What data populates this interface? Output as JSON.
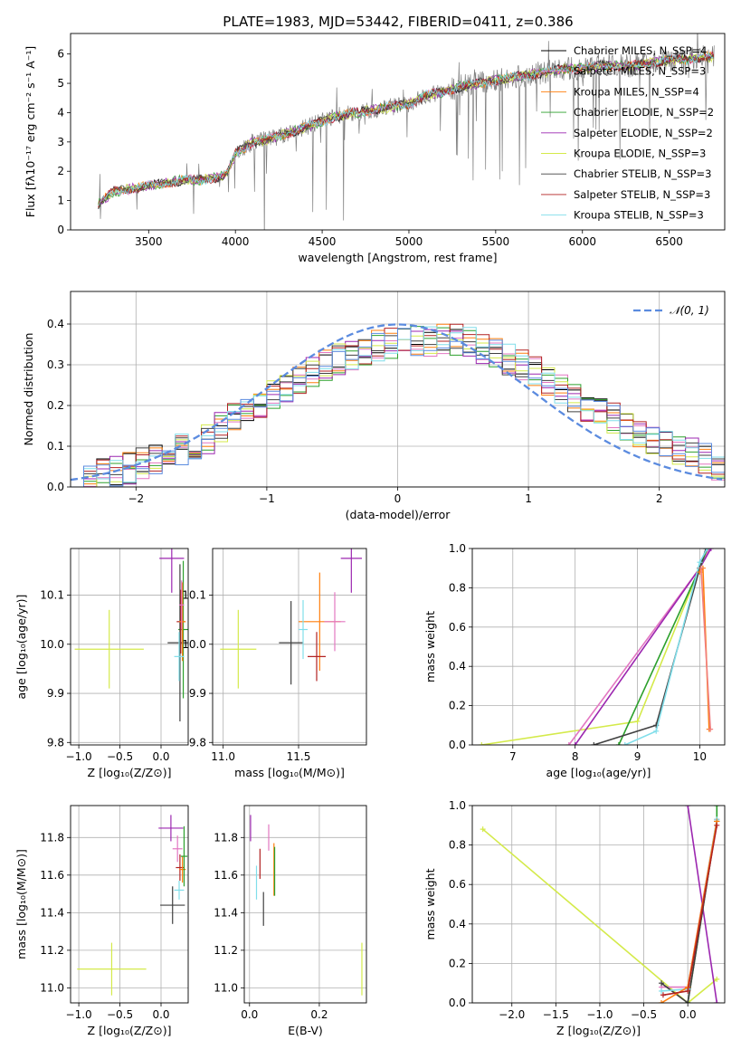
{
  "figure": {
    "title": "PLATE=1983, MJD=53442, FIBERID=0411, z=0.386"
  },
  "chart_data": [
    {
      "id": "spectrum",
      "type": "line",
      "xlabel": "wavelength [Angstrom, rest frame]",
      "ylabel": "Flux [fλ10⁻¹⁷ erg cm⁻² s⁻¹ A⁻¹]",
      "xlim": [
        3050,
        6820
      ],
      "ylim": [
        0,
        6.7
      ],
      "xticks": [
        3500,
        4000,
        4500,
        5000,
        5500,
        6000,
        6500
      ],
      "yticks": [
        0,
        1,
        2,
        3,
        4,
        5,
        6
      ],
      "grid": false,
      "legend_position": "top-right",
      "data_range": [
        3210,
        6760
      ],
      "legend": [
        {
          "name": "Chabrier MILES, N_SSP=4",
          "color": "#000000"
        },
        {
          "name": "Salpeter MILES, N_SSP=3",
          "color": "#e377c2"
        },
        {
          "name": "Kroupa MILES, N_SSP=4",
          "color": "#ff7f0e"
        },
        {
          "name": "Chabrier ELODIE, N_SSP=2",
          "color": "#2ca02c"
        },
        {
          "name": "Salpeter ELODIE, N_SSP=2",
          "color": "#9c27b0"
        },
        {
          "name": "Kroupa ELODIE, N_SSP=3",
          "color": "#d4ea4a"
        },
        {
          "name": "Chabrier STELIB, N_SSP=3",
          "color": "#404040"
        },
        {
          "name": "Salpeter STELIB, N_SSP=3",
          "color": "#b22222"
        },
        {
          "name": "Kroupa STELIB, N_SSP=3",
          "color": "#80deea"
        }
      ],
      "continuum": [
        [
          3210,
          0.9
        ],
        [
          3300,
          1.3
        ],
        [
          3400,
          1.4
        ],
        [
          3500,
          1.5
        ],
        [
          3600,
          1.6
        ],
        [
          3700,
          1.7
        ],
        [
          3800,
          1.7
        ],
        [
          3900,
          1.8
        ],
        [
          3950,
          1.9
        ],
        [
          4000,
          2.6
        ],
        [
          4100,
          3.0
        ],
        [
          4200,
          3.1
        ],
        [
          4300,
          3.3
        ],
        [
          4400,
          3.5
        ],
        [
          4500,
          3.7
        ],
        [
          4600,
          3.9
        ],
        [
          4700,
          4.0
        ],
        [
          4800,
          4.1
        ],
        [
          4900,
          4.2
        ],
        [
          5000,
          4.3
        ],
        [
          5100,
          4.6
        ],
        [
          5200,
          4.7
        ],
        [
          5300,
          4.9
        ],
        [
          5400,
          5.0
        ],
        [
          5500,
          5.1
        ],
        [
          5600,
          5.2
        ],
        [
          5700,
          5.3
        ],
        [
          5800,
          5.4
        ],
        [
          5900,
          5.5
        ],
        [
          6000,
          5.5
        ],
        [
          6100,
          5.6
        ],
        [
          6200,
          5.6
        ],
        [
          6300,
          5.6
        ],
        [
          6400,
          5.7
        ],
        [
          6500,
          5.8
        ],
        [
          6600,
          5.8
        ],
        [
          6700,
          5.9
        ],
        [
          6760,
          5.9
        ]
      ]
    },
    {
      "id": "residual-distribution",
      "type": "line",
      "xlabel": "(data-model)/error",
      "ylabel": "Normed distribution",
      "xlim": [
        -2.5,
        2.5
      ],
      "ylim": [
        0,
        0.48
      ],
      "xticks": [
        -2,
        -1,
        0,
        1,
        2
      ],
      "yticks": [
        0.0,
        0.1,
        0.2,
        0.3,
        0.4
      ],
      "grid": true,
      "legend_position": "top-right",
      "reference_curve": {
        "name": "𝒩(0, 1)",
        "mean": 0,
        "sigma": 1,
        "color": "#5b8bdf"
      },
      "bin_width": 0.1,
      "envelope": [
        [
          -2.5,
          0.02
        ],
        [
          -2.0,
          0.05
        ],
        [
          -1.5,
          0.11
        ],
        [
          -1.0,
          0.22
        ],
        [
          -0.5,
          0.31
        ],
        [
          0.0,
          0.36
        ],
        [
          0.5,
          0.36
        ],
        [
          1.0,
          0.29
        ],
        [
          1.5,
          0.19
        ],
        [
          2.0,
          0.11
        ],
        [
          2.5,
          0.05
        ]
      ],
      "series_colors": [
        "#000000",
        "#e377c2",
        "#ff7f0e",
        "#2ca02c",
        "#9c27b0",
        "#d4ea4a",
        "#404040",
        "#b22222",
        "#80deea",
        "#5b8bdf"
      ]
    },
    {
      "id": "age-vs-Z",
      "type": "scatter",
      "xlabel": "Z [log₁₀(Z/Z⊙)]",
      "ylabel": "age [log₁₀(age/yr)]",
      "xlim": [
        -1.1,
        0.33
      ],
      "ylim": [
        9.795,
        10.195
      ],
      "xticks": [
        -1.0,
        -0.5,
        0.0
      ],
      "yticks": [
        9.8,
        9.9,
        10.0,
        10.1
      ],
      "grid": true,
      "points": [
        {
          "x": -0.63,
          "y": 9.99,
          "xerr": 0.42,
          "yerr": 0.08,
          "color": "#d4ea4a"
        },
        {
          "x": 0.13,
          "y": 10.175,
          "xerr": 0.15,
          "yerr": 0.07,
          "color": "#9c27b0"
        },
        {
          "x": 0.27,
          "y": 10.03,
          "xerr": 0.06,
          "yerr": 0.14,
          "color": "#2ca02c"
        },
        {
          "x": 0.23,
          "y": 10.003,
          "xerr": 0.15,
          "yerr": 0.16,
          "color": "#404040"
        },
        {
          "x": 0.24,
          "y": 10.046,
          "xerr": 0.05,
          "yerr": 0.065,
          "color": "#b22222"
        },
        {
          "x": 0.26,
          "y": 10.046,
          "xerr": 0.04,
          "yerr": 0.08,
          "color": "#ff7f0e"
        },
        {
          "x": 0.22,
          "y": 9.975,
          "xerr": 0.06,
          "yerr": 0.05,
          "color": "#80deea"
        },
        {
          "x": 0.25,
          "y": 10.08,
          "xerr": 0.03,
          "yerr": 0.05,
          "color": "#e377c2"
        }
      ]
    },
    {
      "id": "age-vs-mass",
      "type": "scatter",
      "xlabel": "mass [log₁₀(M/M⊙)]",
      "ylabel": "",
      "xlim": [
        10.93,
        11.95
      ],
      "ylim": [
        9.795,
        10.195
      ],
      "xticks": [
        11.0,
        11.5
      ],
      "yticks": [
        9.8,
        9.9,
        10.0,
        10.1
      ],
      "grid": true,
      "points": [
        {
          "x": 11.1,
          "y": 9.99,
          "xerr": 0.12,
          "yerr": 0.08,
          "color": "#d4ea4a"
        },
        {
          "x": 11.45,
          "y": 10.003,
          "xerr": 0.08,
          "yerr": 0.085,
          "color": "#404040"
        },
        {
          "x": 11.85,
          "y": 10.175,
          "xerr": 0.07,
          "yerr": 0.07,
          "color": "#9c27b0"
        },
        {
          "x": 11.64,
          "y": 10.046,
          "xerr": 0.14,
          "yerr": 0.1,
          "color": "#ff7f0e"
        },
        {
          "x": 11.74,
          "y": 10.046,
          "xerr": 0.07,
          "yerr": 0.06,
          "color": "#e377c2"
        },
        {
          "x": 11.62,
          "y": 9.975,
          "xerr": 0.06,
          "yerr": 0.05,
          "color": "#b22222"
        },
        {
          "x": 11.53,
          "y": 10.03,
          "xerr": 0.03,
          "yerr": 0.06,
          "color": "#80deea"
        }
      ]
    },
    {
      "id": "cumulative-mass-weight-age",
      "type": "line",
      "xlabel": "age [log₁₀(age/yr)]",
      "ylabel": "mass weight",
      "xlim": [
        6.35,
        10.4
      ],
      "ylim": [
        0,
        1
      ],
      "xticks": [
        7,
        8,
        9,
        10
      ],
      "yticks": [
        0.0,
        0.2,
        0.4,
        0.6,
        0.8,
        1.0
      ],
      "grid": true,
      "series": [
        {
          "color": "#d4ea4a",
          "points": [
            [
              6.5,
              0.0
            ],
            [
              9.0,
              0.12
            ],
            [
              10.0,
              0.9
            ],
            [
              10.13,
              1.0
            ]
          ]
        },
        {
          "color": "#e377c2",
          "points": [
            [
              7.9,
              0.0
            ],
            [
              10.0,
              0.9
            ],
            [
              10.15,
              1.0
            ]
          ]
        },
        {
          "color": "#9c27b0",
          "points": [
            [
              8.0,
              0.0
            ],
            [
              10.0,
              0.9
            ],
            [
              10.18,
              1.0
            ]
          ]
        },
        {
          "color": "#2ca02c",
          "points": [
            [
              8.7,
              0.0
            ],
            [
              10.0,
              0.9
            ],
            [
              10.12,
              1.0
            ]
          ]
        },
        {
          "color": "#404040",
          "points": [
            [
              8.3,
              0.0
            ],
            [
              9.3,
              0.1
            ],
            [
              10.0,
              0.9
            ],
            [
              10.1,
              1.0
            ]
          ]
        },
        {
          "color": "#80deea",
          "points": [
            [
              8.8,
              0.0
            ],
            [
              9.3,
              0.07
            ],
            [
              10.0,
              0.93
            ],
            [
              10.12,
              1.0
            ]
          ]
        },
        {
          "color": "#ff7f0e",
          "points": [
            [
              10.0,
              0.88
            ],
            [
              10.05,
              0.9
            ],
            [
              10.15,
              0.08
            ]
          ]
        },
        {
          "color": "#f08080",
          "points": [
            [
              10.02,
              0.9
            ],
            [
              10.17,
              0.08
            ]
          ]
        }
      ]
    },
    {
      "id": "mass-vs-Z",
      "type": "scatter",
      "xlabel": "Z [log₁₀(Z/Z⊙)]",
      "ylabel": "mass [log₁₀(M/M⊙)]",
      "xlim": [
        -1.1,
        0.33
      ],
      "ylim": [
        10.92,
        11.97
      ],
      "xticks": [
        -1.0,
        -0.5,
        0.0
      ],
      "yticks": [
        11.0,
        11.2,
        11.4,
        11.6,
        11.8
      ],
      "grid": true,
      "points": [
        {
          "x": -0.6,
          "y": 11.1,
          "xerr": 0.42,
          "yerr": 0.14,
          "color": "#d4ea4a"
        },
        {
          "x": 0.12,
          "y": 11.85,
          "xerr": 0.15,
          "yerr": 0.07,
          "color": "#9c27b0"
        },
        {
          "x": 0.14,
          "y": 11.44,
          "xerr": 0.15,
          "yerr": 0.1,
          "color": "#404040"
        },
        {
          "x": 0.23,
          "y": 11.64,
          "xerr": 0.05,
          "yerr": 0.07,
          "color": "#b22222"
        },
        {
          "x": 0.26,
          "y": 11.63,
          "xerr": 0.04,
          "yerr": 0.07,
          "color": "#ff7f0e"
        },
        {
          "x": 0.22,
          "y": 11.52,
          "xerr": 0.06,
          "yerr": 0.05,
          "color": "#80deea"
        },
        {
          "x": 0.2,
          "y": 11.74,
          "xerr": 0.06,
          "yerr": 0.07,
          "color": "#e377c2"
        },
        {
          "x": 0.28,
          "y": 11.7,
          "xerr": 0.04,
          "yerr": 0.16,
          "color": "#2ca02c"
        }
      ]
    },
    {
      "id": "mass-vs-EBV",
      "type": "scatter",
      "xlabel": "E(B-V)",
      "ylabel": "",
      "xlim": [
        -0.015,
        0.335
      ],
      "ylim": [
        10.92,
        11.97
      ],
      "xticks": [
        0.0,
        0.2
      ],
      "yticks": [
        11.0,
        11.2,
        11.4,
        11.6,
        11.8
      ],
      "grid": true,
      "points": [
        {
          "x": 0.003,
          "y": 11.85,
          "yerr": 0.07,
          "color": "#9c27b0"
        },
        {
          "x": 0.03,
          "y": 11.66,
          "yerr": 0.08,
          "color": "#b22222"
        },
        {
          "x": 0.02,
          "y": 11.56,
          "yerr": 0.09,
          "color": "#80deea"
        },
        {
          "x": 0.04,
          "y": 11.42,
          "yerr": 0.09,
          "color": "#404040"
        },
        {
          "x": 0.055,
          "y": 11.8,
          "yerr": 0.07,
          "color": "#e377c2"
        },
        {
          "x": 0.07,
          "y": 11.63,
          "yerr": 0.14,
          "color": "#ff7f0e"
        },
        {
          "x": 0.072,
          "y": 11.62,
          "yerr": 0.13,
          "color": "#2ca02c"
        },
        {
          "x": 0.322,
          "y": 11.1,
          "yerr": 0.14,
          "color": "#d4ea4a"
        }
      ]
    },
    {
      "id": "cumulative-mass-weight-Z",
      "type": "line",
      "xlabel": "Z [log₁₀(Z/Z⊙)]",
      "ylabel": "mass weight",
      "xlim": [
        -2.45,
        0.42
      ],
      "ylim": [
        0,
        1
      ],
      "xticks": [
        -2.0,
        -1.5,
        -1.0,
        -0.5,
        0.0
      ],
      "yticks": [
        0.0,
        0.2,
        0.4,
        0.6,
        0.8,
        1.0
      ],
      "grid": true,
      "series": [
        {
          "color": "#d4ea4a",
          "points": [
            [
              -2.33,
              0.88
            ],
            [
              0.0,
              0.0
            ],
            [
              0.33,
              0.12
            ]
          ]
        },
        {
          "color": "#e377c2",
          "points": [
            [
              -0.3,
              0.08
            ],
            [
              0.0,
              0.08
            ],
            [
              0.33,
              0.93
            ]
          ]
        },
        {
          "color": "#9c27b0",
          "points": [
            [
              0.0,
              1.0
            ],
            [
              0.33,
              0.0
            ]
          ]
        },
        {
          "color": "#2ca02c",
          "points": [
            [
              0.0,
              0.0
            ],
            [
              0.33,
              0.92
            ],
            [
              0.33,
              1.0
            ]
          ]
        },
        {
          "color": "#404040",
          "points": [
            [
              -0.3,
              0.1
            ],
            [
              0.0,
              0.0
            ],
            [
              0.33,
              0.92
            ]
          ]
        },
        {
          "color": "#80deea",
          "points": [
            [
              -0.3,
              0.06
            ],
            [
              0.0,
              0.07
            ],
            [
              0.33,
              0.93
            ]
          ]
        },
        {
          "color": "#ff7f0e",
          "points": [
            [
              -0.3,
              0.0
            ],
            [
              0.0,
              0.08
            ],
            [
              0.33,
              0.92
            ]
          ]
        },
        {
          "color": "#b22222",
          "points": [
            [
              -0.28,
              0.04
            ],
            [
              0.0,
              0.06
            ],
            [
              0.33,
              0.9
            ]
          ]
        }
      ]
    }
  ]
}
